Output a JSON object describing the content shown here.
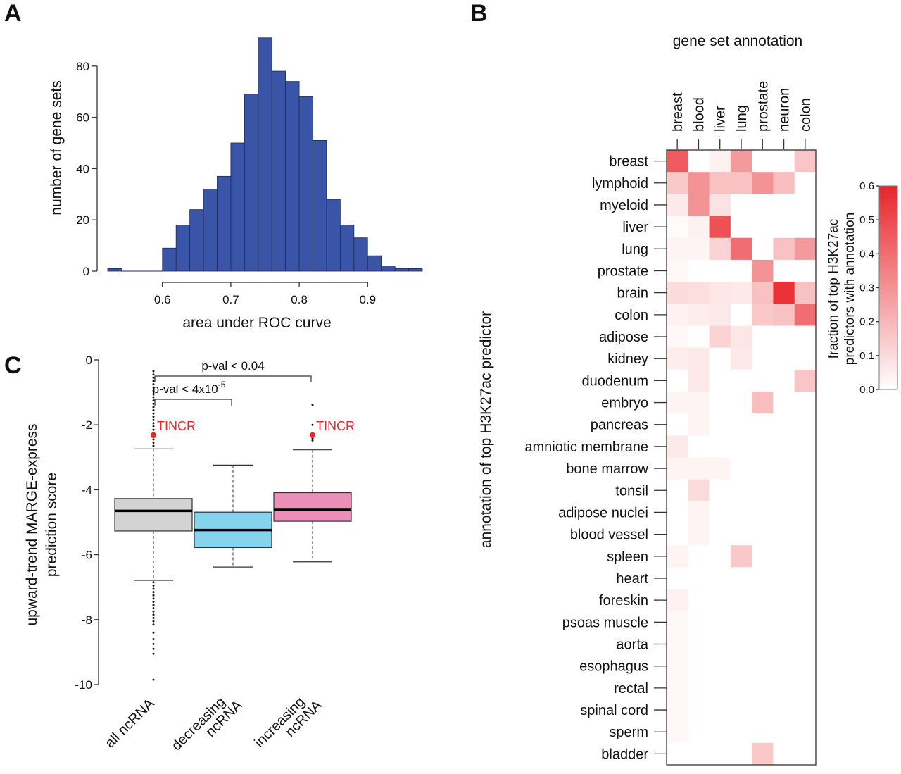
{
  "panels": {
    "A": "A",
    "B": "B",
    "C": "C"
  },
  "chart_data": [
    {
      "id": "A",
      "type": "bar",
      "subtype": "histogram",
      "xlabel": "area under ROC curve",
      "ylabel": "number of gene sets",
      "xlim": [
        0.52,
        0.98
      ],
      "ylim": [
        0,
        91
      ],
      "xticks": [
        "0.6",
        "0.7",
        "0.8",
        "0.9"
      ],
      "xtick_values": [
        0.6,
        0.7,
        0.8,
        0.9
      ],
      "yticks": [
        "0",
        "20",
        "40",
        "60",
        "80"
      ],
      "ytick_values": [
        0,
        20,
        40,
        60,
        80
      ],
      "bin_width": 0.02,
      "bin_starts": [
        0.52,
        0.54,
        0.56,
        0.58,
        0.6,
        0.62,
        0.64,
        0.66,
        0.68,
        0.7,
        0.72,
        0.74,
        0.76,
        0.78,
        0.8,
        0.82,
        0.84,
        0.86,
        0.88,
        0.9,
        0.92,
        0.94,
        0.96
      ],
      "values": [
        1,
        0,
        0,
        0,
        9,
        18,
        24,
        32,
        37,
        50,
        69,
        91,
        78,
        74,
        68,
        51,
        28,
        18,
        13,
        6,
        2,
        1,
        1
      ],
      "bar_color": "#3a55a8",
      "grid": false
    },
    {
      "id": "B",
      "type": "heatmap",
      "title": "gene set annotation",
      "ylabel": "annotation of top H3K27ac predictor",
      "columns": [
        "breast",
        "blood",
        "liver",
        "lung",
        "prostate",
        "neuron",
        "colon"
      ],
      "rows": [
        "breast",
        "lymphoid",
        "myeloid",
        "liver",
        "lung",
        "prostate",
        "brain",
        "colon",
        "adipose",
        "kidney",
        "duodenum",
        "embryo",
        "pancreas",
        "amniotic membrane",
        "bone marrow",
        "tonsil",
        "adipose nuclei",
        "blood vessel",
        "spleen",
        "heart",
        "foreskin",
        "psoas muscle",
        "aorta",
        "esophagus",
        "rectal",
        "spinal cord",
        "sperm",
        "bladder"
      ],
      "values": [
        [
          0.45,
          0.0,
          0.04,
          0.28,
          0.0,
          0.0,
          0.16
        ],
        [
          0.15,
          0.3,
          0.17,
          0.17,
          0.3,
          0.18,
          0.0
        ],
        [
          0.06,
          0.3,
          0.08,
          0.0,
          0.0,
          0.0,
          0.0
        ],
        [
          0.01,
          0.04,
          0.48,
          0.0,
          0.0,
          0.0,
          0.0
        ],
        [
          0.03,
          0.03,
          0.12,
          0.4,
          0.0,
          0.17,
          0.28
        ],
        [
          0.02,
          0.0,
          0.0,
          0.0,
          0.3,
          0.0,
          0.0
        ],
        [
          0.1,
          0.09,
          0.07,
          0.06,
          0.17,
          0.57,
          0.17
        ],
        [
          0.04,
          0.05,
          0.06,
          0.0,
          0.15,
          0.17,
          0.4
        ],
        [
          0.02,
          0.0,
          0.12,
          0.07,
          0.0,
          0.0,
          0.0
        ],
        [
          0.05,
          0.06,
          0.0,
          0.06,
          0.0,
          0.0,
          0.0
        ],
        [
          0.0,
          0.06,
          0.0,
          0.0,
          0.0,
          0.0,
          0.16
        ],
        [
          0.03,
          0.03,
          0.0,
          0.0,
          0.18,
          0.0,
          0.0
        ],
        [
          0.0,
          0.03,
          0.0,
          0.0,
          0.0,
          0.0,
          0.0
        ],
        [
          0.06,
          0.0,
          0.0,
          0.0,
          0.0,
          0.0,
          0.0
        ],
        [
          0.03,
          0.03,
          0.03,
          0.0,
          0.0,
          0.0,
          0.0
        ],
        [
          0.0,
          0.1,
          0.0,
          0.0,
          0.0,
          0.0,
          0.0
        ],
        [
          0.0,
          0.03,
          0.0,
          0.0,
          0.0,
          0.0,
          0.0
        ],
        [
          0.0,
          0.03,
          0.0,
          0.0,
          0.0,
          0.0,
          0.0
        ],
        [
          0.03,
          0.0,
          0.0,
          0.15,
          0.0,
          0.0,
          0.0
        ],
        [
          0.0,
          0.0,
          0.0,
          0.0,
          0.0,
          0.0,
          0.0
        ],
        [
          0.04,
          0.0,
          0.0,
          0.0,
          0.0,
          0.0,
          0.0
        ],
        [
          0.02,
          0.0,
          0.0,
          0.0,
          0.0,
          0.0,
          0.0
        ],
        [
          0.02,
          0.0,
          0.0,
          0.0,
          0.0,
          0.0,
          0.0
        ],
        [
          0.02,
          0.0,
          0.0,
          0.0,
          0.0,
          0.0,
          0.0
        ],
        [
          0.02,
          0.0,
          0.0,
          0.0,
          0.0,
          0.0,
          0.0
        ],
        [
          0.02,
          0.0,
          0.0,
          0.0,
          0.0,
          0.0,
          0.0
        ],
        [
          0.02,
          0.0,
          0.0,
          0.0,
          0.0,
          0.0,
          0.0
        ],
        [
          0.0,
          0.0,
          0.0,
          0.0,
          0.15,
          0.0,
          0.0
        ]
      ],
      "colorbar": {
        "label_line1": "fraction of top H3K27ac",
        "label_line2": "predictors with annotation",
        "range": [
          0.0,
          0.6
        ],
        "ticks": [
          "0.0",
          "0.1",
          "0.2",
          "0.3",
          "0.4",
          "0.5",
          "0.6"
        ],
        "tick_values": [
          0.0,
          0.1,
          0.2,
          0.3,
          0.4,
          0.5,
          0.6
        ],
        "low_color": "#ffffff",
        "high_color": "#e8262b",
        "placement": "right"
      }
    },
    {
      "id": "C",
      "type": "box",
      "ylabel_line1": "upward-trend MARGE-express",
      "ylabel_line2": "prediction score",
      "ylim": [
        -10,
        0
      ],
      "yticks": [
        "0",
        "-2",
        "-4",
        "-6",
        "-8",
        "-10"
      ],
      "ytick_values": [
        0,
        -2,
        -4,
        -6,
        -8,
        -10
      ],
      "categories": [
        "all ncRNA",
        "decreasing ncRNA",
        "increasing ncRNA"
      ],
      "category_lines": [
        [
          "all ncRNA"
        ],
        [
          "decreasing",
          "ncRNA"
        ],
        [
          "increasing",
          "ncRNA"
        ]
      ],
      "boxes": [
        {
          "name": "all ncRNA",
          "whisker_low": -6.79,
          "q1": -5.27,
          "median": -4.65,
          "q3": -4.27,
          "whisker_high": -2.74,
          "color": "#d3d3d3",
          "outliers": [
            -0.35,
            -0.45,
            -0.55,
            -0.65,
            -0.75,
            -0.85,
            -0.95,
            -1.05,
            -1.15,
            -1.25,
            -1.35,
            -1.45,
            -1.55,
            -1.65,
            -1.75,
            -1.85,
            -1.95,
            -2.05,
            -2.15,
            -2.25,
            -2.35,
            -2.45,
            -2.55,
            -2.65,
            -6.85,
            -6.95,
            -7.05,
            -7.15,
            -7.25,
            -7.35,
            -7.45,
            -7.55,
            -7.65,
            -7.75,
            -7.85,
            -7.95,
            -8.05,
            -8.15,
            -8.4,
            -8.6,
            -8.75,
            -8.9,
            -9.05,
            -9.85
          ]
        },
        {
          "name": "decreasing ncRNA",
          "whisker_low": -6.38,
          "q1": -5.78,
          "median": -5.24,
          "q3": -4.69,
          "whisker_high": -3.24,
          "color": "#86d3ee",
          "outliers": []
        },
        {
          "name": "increasing ncRNA",
          "whisker_low": -6.22,
          "q1": -4.97,
          "median": -4.62,
          "q3": -4.09,
          "whisker_high": -2.77,
          "color": "#ec8fb8",
          "outliers": [
            -1.38,
            -2.0,
            -2.42,
            -2.48
          ]
        }
      ],
      "highlights": [
        {
          "label": "TINCR",
          "category": "all ncRNA",
          "value": -2.32,
          "color": "#e8262b"
        },
        {
          "label": "TINCR",
          "category": "increasing ncRNA",
          "value": -2.32,
          "color": "#e8262b"
        }
      ],
      "comparisons": [
        {
          "from": "all ncRNA",
          "to": "increasing ncRNA",
          "label": "p-val < 0.04",
          "level": 2
        },
        {
          "from": "all ncRNA",
          "to": "decreasing ncRNA",
          "label_base": "p-val < 4x10",
          "label_sup": "-5",
          "level": 1
        }
      ]
    }
  ]
}
